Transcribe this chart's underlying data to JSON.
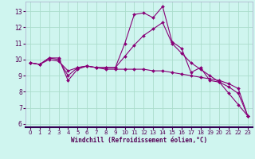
{
  "xlabel": "Windchill (Refroidissement éolien,°C)",
  "bg_color": "#cff5ef",
  "grid_color": "#aaddcc",
  "line_color": "#880077",
  "axis_color": "#550055",
  "xlim": [
    -0.5,
    23.5
  ],
  "ylim": [
    5.8,
    13.6
  ],
  "yticks": [
    6,
    7,
    8,
    9,
    10,
    11,
    12,
    13
  ],
  "xticks": [
    0,
    1,
    2,
    3,
    4,
    5,
    6,
    7,
    8,
    9,
    10,
    11,
    12,
    13,
    14,
    15,
    16,
    17,
    18,
    19,
    20,
    21,
    22,
    23
  ],
  "series1": [
    9.8,
    9.7,
    10.1,
    10.1,
    8.7,
    9.4,
    9.6,
    9.5,
    9.5,
    9.5,
    11.0,
    12.8,
    12.9,
    12.6,
    13.3,
    11.1,
    10.7,
    9.2,
    9.5,
    8.7,
    8.6,
    7.9,
    7.2,
    6.5
  ],
  "series2": [
    9.8,
    9.7,
    10.1,
    10.0,
    9.0,
    9.5,
    9.6,
    9.5,
    9.5,
    9.5,
    10.2,
    10.9,
    11.5,
    11.9,
    12.3,
    11.0,
    10.4,
    9.8,
    9.4,
    9.0,
    8.6,
    8.3,
    7.9,
    6.5
  ],
  "series3": [
    9.8,
    9.7,
    10.0,
    9.9,
    9.3,
    9.5,
    9.6,
    9.5,
    9.4,
    9.4,
    9.4,
    9.4,
    9.4,
    9.3,
    9.3,
    9.2,
    9.1,
    9.0,
    8.9,
    8.8,
    8.7,
    8.5,
    8.2,
    6.5
  ]
}
